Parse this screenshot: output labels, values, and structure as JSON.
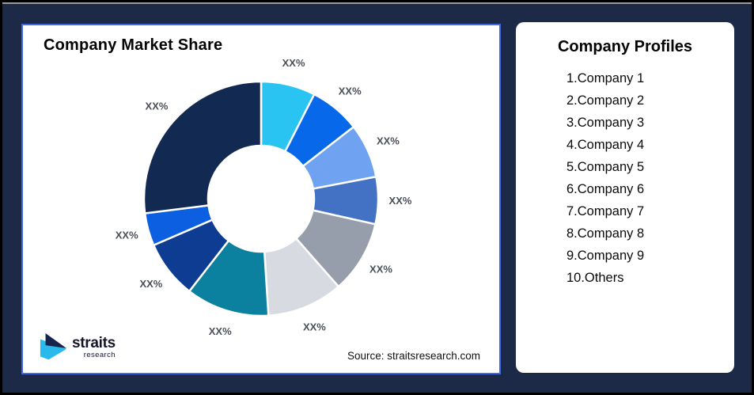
{
  "background": {
    "frame_color": "#1C2A47",
    "edge_color": "#000000",
    "top_line_color": "#9b9b9b"
  },
  "left_panel": {
    "title": "Company Market Share",
    "source": "Source: straitsresearch.com",
    "accent_border_color": "#4169E1",
    "logo": {
      "name": "straits",
      "sub": "research",
      "mark_dark_color": "#16244E",
      "mark_cyan_color": "#29B9EC"
    }
  },
  "right_panel": {
    "title": "Company Profiles",
    "items": [
      {
        "label": "1.Company 1"
      },
      {
        "label": "2.Company 2"
      },
      {
        "label": "3.Company 3"
      },
      {
        "label": "4.Company 4"
      },
      {
        "label": "5.Company 5"
      },
      {
        "label": "6.Company 6"
      },
      {
        "label": "7.Company 7"
      },
      {
        "label": "8.Company 8"
      },
      {
        "label": "9.Company 9"
      },
      {
        "label": "10.Others"
      }
    ]
  },
  "chart_data": {
    "type": "pie",
    "subtype": "donut",
    "title": "Company Market Share",
    "direction": "clockwise",
    "start_angle_deg": 0,
    "inner_radius_ratio": 0.45,
    "label_color": "#4b5058",
    "values_are_placeholders": true,
    "segments": [
      {
        "label": "XX%",
        "value": 7.5,
        "color": "#2AC4F3"
      },
      {
        "label": "XX%",
        "value": 7.0,
        "color": "#0768EA"
      },
      {
        "label": "XX%",
        "value": 7.5,
        "color": "#6FA3F2"
      },
      {
        "label": "XX%",
        "value": 6.5,
        "color": "#4372C4"
      },
      {
        "label": "XX%",
        "value": 10.0,
        "color": "#969DAB"
      },
      {
        "label": "XX%",
        "value": 10.5,
        "color": "#D7DAE0"
      },
      {
        "label": "XX%",
        "value": 11.5,
        "color": "#0B809F"
      },
      {
        "label": "XX%",
        "value": 8.0,
        "color": "#0E3C92"
      },
      {
        "label": "XX%",
        "value": 4.5,
        "color": "#0B5FE0"
      },
      {
        "label": "XX%",
        "value": 27.0,
        "color": "#122A52"
      }
    ]
  }
}
